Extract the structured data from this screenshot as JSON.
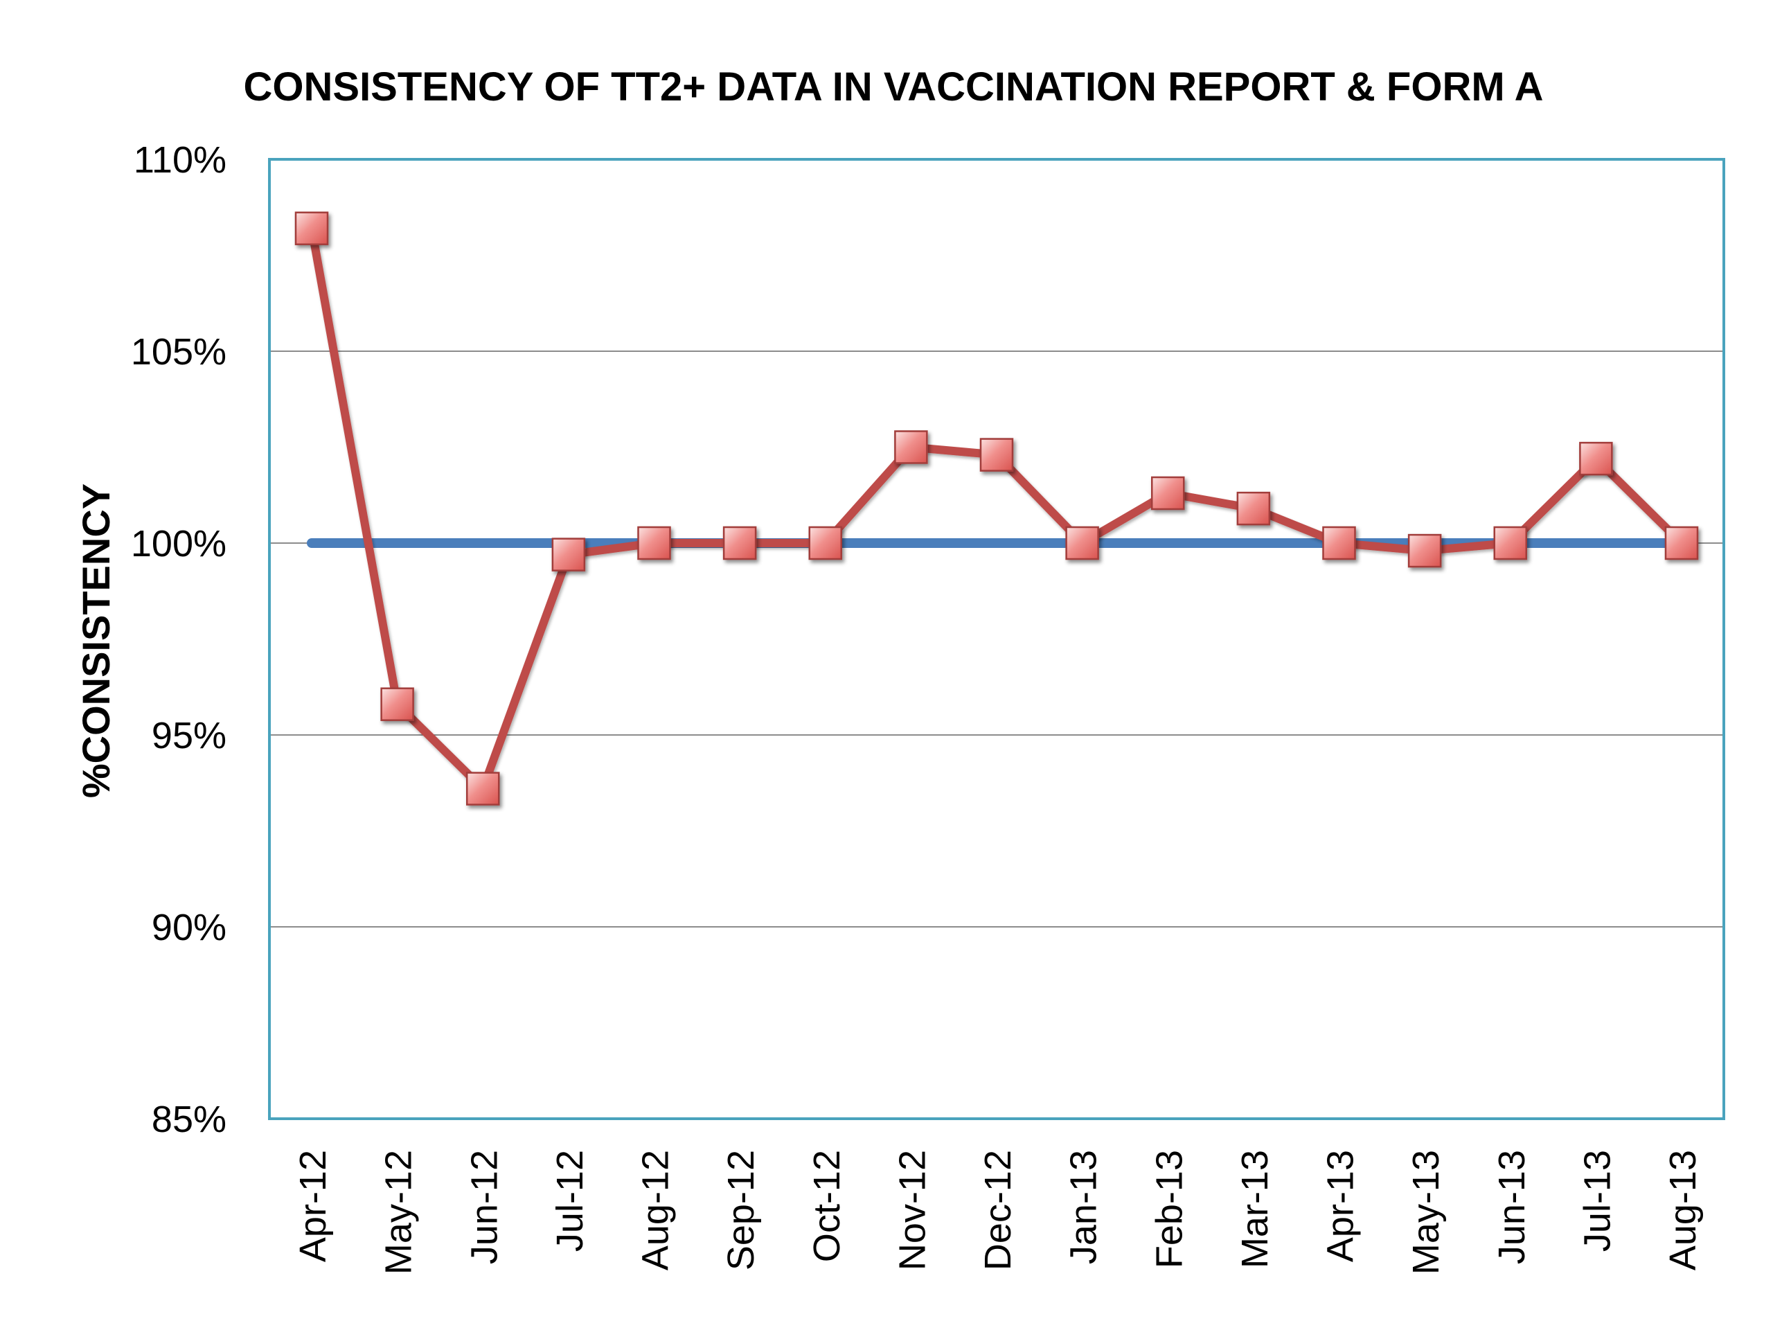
{
  "chart_data": {
    "type": "line",
    "title": "CONSISTENCY OF TT2+ DATA IN VACCINATION REPORT & FORM A",
    "ylabel": "%CONSISTENCY",
    "xlabel": "",
    "categories": [
      "Apr-12",
      "May-12",
      "Jun-12",
      "Jul-12",
      "Aug-12",
      "Sep-12",
      "Oct-12",
      "Nov-12",
      "Dec-12",
      "Jan-13",
      "Feb-13",
      "Mar-13",
      "Apr-13",
      "May-13",
      "Jun-13",
      "Jul-13",
      "Aug-13"
    ],
    "ylim": [
      85,
      110
    ],
    "yticks": [
      85,
      90,
      95,
      100,
      105,
      110
    ],
    "ytick_labels": [
      "85%",
      "90%",
      "95%",
      "100%",
      "105%",
      "110%"
    ],
    "grid": true,
    "legend": "none",
    "series": [
      {
        "values": [
          100,
          100,
          100,
          100,
          100,
          100,
          100,
          100,
          100,
          100,
          100,
          100,
          100,
          100,
          100,
          100,
          100
        ],
        "color": "#4a7ebb",
        "marker": "none"
      },
      {
        "values": [
          108.2,
          95.8,
          93.6,
          99.7,
          100,
          100,
          100,
          102.5,
          102.3,
          100,
          101.3,
          100.9,
          100,
          99.8,
          100,
          102.2,
          100
        ],
        "color": "#be4b48",
        "marker": "square"
      }
    ]
  }
}
